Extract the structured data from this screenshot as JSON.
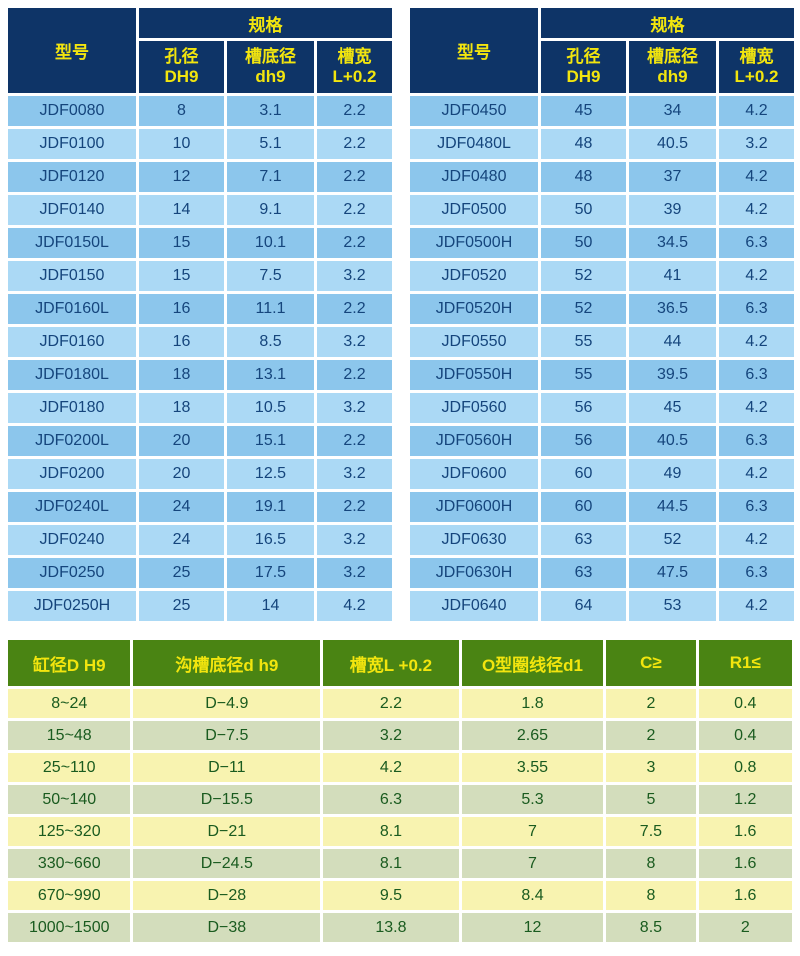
{
  "colors": {
    "header_navy": "#0e3467",
    "header_text_yellow": "#f2e50e",
    "row_blue_dark": "#8cc6ec",
    "row_blue_light": "#abd9f5",
    "row_text_navy": "#15457c",
    "header_green": "#4a8413",
    "row_pale_yellow": "#f8f3b0",
    "row_pale_green": "#d3ddbc",
    "row_text_green": "#1a5b1f",
    "page_bg": "#ffffff"
  },
  "spec_header": {
    "model": "型号",
    "spec": "规格",
    "sub": [
      "孔径\nDH9",
      "槽底径\ndh9",
      "槽宽\nL+0.2"
    ]
  },
  "left_table": {
    "rows": [
      [
        "JDF0080",
        "8",
        "3.1",
        "2.2"
      ],
      [
        "JDF0100",
        "10",
        "5.1",
        "2.2"
      ],
      [
        "JDF0120",
        "12",
        "7.1",
        "2.2"
      ],
      [
        "JDF0140",
        "14",
        "9.1",
        "2.2"
      ],
      [
        "JDF0150L",
        "15",
        "10.1",
        "2.2"
      ],
      [
        "JDF0150",
        "15",
        "7.5",
        "3.2"
      ],
      [
        "JDF0160L",
        "16",
        "11.1",
        "2.2"
      ],
      [
        "JDF0160",
        "16",
        "8.5",
        "3.2"
      ],
      [
        "JDF0180L",
        "18",
        "13.1",
        "2.2"
      ],
      [
        "JDF0180",
        "18",
        "10.5",
        "3.2"
      ],
      [
        "JDF0200L",
        "20",
        "15.1",
        "2.2"
      ],
      [
        "JDF0200",
        "20",
        "12.5",
        "3.2"
      ],
      [
        "JDF0240L",
        "24",
        "19.1",
        "2.2"
      ],
      [
        "JDF0240",
        "24",
        "16.5",
        "3.2"
      ],
      [
        "JDF0250",
        "25",
        "17.5",
        "3.2"
      ],
      [
        "JDF0250H",
        "25",
        "14",
        "4.2"
      ]
    ]
  },
  "right_table": {
    "rows": [
      [
        "JDF0450",
        "45",
        "34",
        "4.2"
      ],
      [
        "JDF0480L",
        "48",
        "40.5",
        "3.2"
      ],
      [
        "JDF0480",
        "48",
        "37",
        "4.2"
      ],
      [
        "JDF0500",
        "50",
        "39",
        "4.2"
      ],
      [
        "JDF0500H",
        "50",
        "34.5",
        "6.3"
      ],
      [
        "JDF0520",
        "52",
        "41",
        "4.2"
      ],
      [
        "JDF0520H",
        "52",
        "36.5",
        "6.3"
      ],
      [
        "JDF0550",
        "55",
        "44",
        "4.2"
      ],
      [
        "JDF0550H",
        "55",
        "39.5",
        "6.3"
      ],
      [
        "JDF0560",
        "56",
        "45",
        "4.2"
      ],
      [
        "JDF0560H",
        "56",
        "40.5",
        "6.3"
      ],
      [
        "JDF0600",
        "60",
        "49",
        "4.2"
      ],
      [
        "JDF0600H",
        "60",
        "44.5",
        "6.3"
      ],
      [
        "JDF0630",
        "63",
        "52",
        "4.2"
      ],
      [
        "JDF0630H",
        "63",
        "47.5",
        "6.3"
      ],
      [
        "JDF0640",
        "64",
        "53",
        "4.2"
      ]
    ]
  },
  "groove_table": {
    "headers": [
      "缸径D H9",
      "沟槽底径d h9",
      "槽宽L +0.2",
      "O型圈线径d1",
      "C≥",
      "R1≤"
    ],
    "rows": [
      [
        "8~24",
        "D−4.9",
        "2.2",
        "1.8",
        "2",
        "0.4"
      ],
      [
        "15~48",
        "D−7.5",
        "3.2",
        "2.65",
        "2",
        "0.4"
      ],
      [
        "25~110",
        "D−11",
        "4.2",
        "3.55",
        "3",
        "0.8"
      ],
      [
        "50~140",
        "D−15.5",
        "6.3",
        "5.3",
        "5",
        "1.2"
      ],
      [
        "125~320",
        "D−21",
        "8.1",
        "7",
        "7.5",
        "1.6"
      ],
      [
        "330~660",
        "D−24.5",
        "8.1",
        "7",
        "8",
        "1.6"
      ],
      [
        "670~990",
        "D−28",
        "9.5",
        "8.4",
        "8",
        "1.6"
      ],
      [
        "1000~1500",
        "D−38",
        "13.8",
        "12",
        "8.5",
        "2"
      ]
    ]
  }
}
